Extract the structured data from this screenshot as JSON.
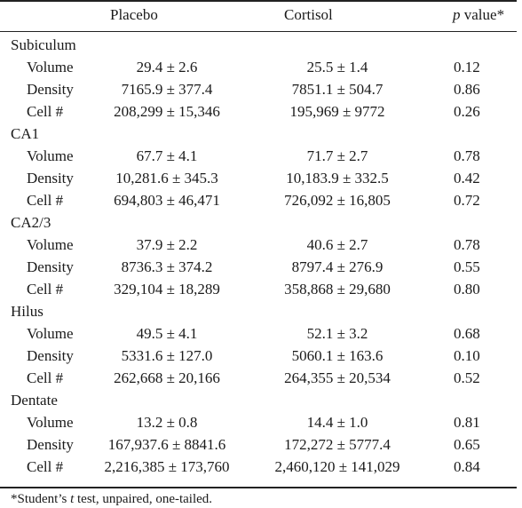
{
  "headers": {
    "placebo": "Placebo",
    "cortisol": "Cortisol",
    "p_italic": "p",
    "p_rest": " value*"
  },
  "sections": [
    {
      "name": "Subiculum",
      "rows": [
        {
          "label": "Volume",
          "placebo": "29.4 ± 2.6",
          "cortisol": "25.5 ± 1.4",
          "p": "0.12"
        },
        {
          "label": "Density",
          "placebo": "7165.9 ± 377.4",
          "cortisol": "7851.1 ± 504.7",
          "p": "0.86"
        },
        {
          "label": "Cell #",
          "placebo": "208,299 ± 15,346",
          "cortisol": "195,969 ± 9772",
          "p": "0.26"
        }
      ]
    },
    {
      "name": "CA1",
      "rows": [
        {
          "label": "Volume",
          "placebo": "67.7 ± 4.1",
          "cortisol": "71.7 ± 2.7",
          "p": "0.78"
        },
        {
          "label": "Density",
          "placebo": "10,281.6 ± 345.3",
          "cortisol": "10,183.9 ± 332.5",
          "p": "0.42"
        },
        {
          "label": "Cell #",
          "placebo": "694,803 ± 46,471",
          "cortisol": "726,092 ± 16,805",
          "p": "0.72"
        }
      ]
    },
    {
      "name": "CA2/3",
      "rows": [
        {
          "label": "Volume",
          "placebo": "37.9 ± 2.2",
          "cortisol": "40.6 ± 2.7",
          "p": "0.78"
        },
        {
          "label": "Density",
          "placebo": "8736.3 ± 374.2",
          "cortisol": "8797.4 ± 276.9",
          "p": "0.55"
        },
        {
          "label": "Cell #",
          "placebo": "329,104 ± 18,289",
          "cortisol": "358,868 ± 29,680",
          "p": "0.80"
        }
      ]
    },
    {
      "name": "Hilus",
      "rows": [
        {
          "label": "Volume",
          "placebo": "49.5 ± 4.1",
          "cortisol": "52.1 ± 3.2",
          "p": "0.68"
        },
        {
          "label": "Density",
          "placebo": "5331.6 ± 127.0",
          "cortisol": "5060.1 ± 163.6",
          "p": "0.10"
        },
        {
          "label": "Cell #",
          "placebo": "262,668 ± 20,166",
          "cortisol": "264,355 ± 20,534",
          "p": "0.52"
        }
      ]
    },
    {
      "name": "Dentate",
      "rows": [
        {
          "label": "Volume",
          "placebo": "13.2 ± 0.8",
          "cortisol": "14.4 ± 1.0",
          "p": "0.81"
        },
        {
          "label": "Density",
          "placebo": "167,937.6 ± 8841.6",
          "cortisol": "172,272 ± 5777.4",
          "p": "0.65"
        },
        {
          "label": "Cell #",
          "placebo": "2,216,385 ± 173,760",
          "cortisol": "2,460,120 ± 141,029",
          "p": "0.84"
        }
      ]
    }
  ],
  "footnote": {
    "prefix": "*Student’s ",
    "italic": "t",
    "suffix": " test, unpaired, one-tailed."
  }
}
